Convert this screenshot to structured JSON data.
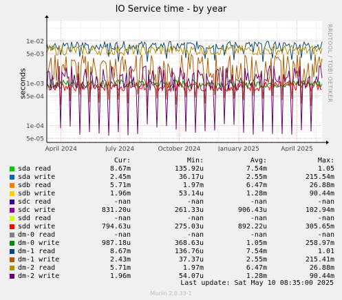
{
  "chart_data": {
    "type": "line",
    "title": "IO Service time - by year",
    "ylabel": "seconds",
    "yscale": "log",
    "ylim": [
      4e-05,
      0.03
    ],
    "yticks": [
      {
        "value": 0.01,
        "label": "1e-02"
      },
      {
        "value": 0.005,
        "label": "5e-03"
      },
      {
        "value": 0.001,
        "label": "1e-03"
      },
      {
        "value": 0.0005,
        "label": "5e-04"
      },
      {
        "value": 0.0001,
        "label": "1e-04"
      },
      {
        "value": 5e-05,
        "label": "5e-05"
      }
    ],
    "xlim": [
      "2024-03-10",
      "2025-05-10"
    ],
    "xticks": [
      {
        "date": "2024-04-01",
        "label": "April 2024"
      },
      {
        "date": "2024-07-01",
        "label": "July 2024"
      },
      {
        "date": "2024-10-01",
        "label": "October 2024"
      },
      {
        "date": "2025-01-01",
        "label": "January 2025"
      },
      {
        "date": "2025-04-01",
        "label": "April 2025"
      }
    ],
    "grid": true,
    "watermark": "RRDTOOL / TOBI OETIKER",
    "columns": [
      "Cur:",
      "Min:",
      "Avg:",
      "Max:"
    ],
    "series": [
      {
        "name": "sda read",
        "color": "#00cc00",
        "cur": "8.67m",
        "min": "135.92u",
        "avg": "7.54m",
        "max": "1.05",
        "plot": false
      },
      {
        "name": "sda write",
        "color": "#0066b3",
        "cur": "2.45m",
        "min": "36.17u",
        "avg": "2.55m",
        "max": "215.54m",
        "plot": false
      },
      {
        "name": "sdb read",
        "color": "#ff8000",
        "cur": "5.71m",
        "min": "1.97m",
        "avg": "6.47m",
        "max": "26.88m",
        "plot": false
      },
      {
        "name": "sdb write",
        "color": "#ffcc00",
        "cur": "1.96m",
        "min": "53.14u",
        "avg": "1.28m",
        "max": "90.44m",
        "plot": false
      },
      {
        "name": "sdc read",
        "color": "#330099",
        "cur": "-nan",
        "min": "-nan",
        "avg": "-nan",
        "max": "-nan",
        "plot": false
      },
      {
        "name": "sdc write",
        "color": "#990099",
        "cur": "831.20u",
        "min": "261.33u",
        "avg": "906.43u",
        "max": "102.94m",
        "plot": false
      },
      {
        "name": "sdd read",
        "color": "#ccff00",
        "cur": "-nan",
        "min": "-nan",
        "avg": "-nan",
        "max": "-nan",
        "plot": false
      },
      {
        "name": "sdd write",
        "color": "#ff0000",
        "cur": "794.63u",
        "min": "275.03u",
        "avg": "892.22u",
        "max": "305.65m",
        "plot": true,
        "base": 0.00085,
        "dips": false,
        "spread": 0.12
      },
      {
        "name": "dm-0 read",
        "color": "#808080",
        "cur": "-nan",
        "min": "-nan",
        "avg": "-nan",
        "max": "-nan",
        "plot": false
      },
      {
        "name": "dm-0 write",
        "color": "#008f00",
        "cur": "987.18u",
        "min": "368.63u",
        "avg": "1.05m",
        "max": "258.97m",
        "plot": true,
        "base": 0.00098,
        "dips": false,
        "spread": 0.1
      },
      {
        "name": "dm-1 read",
        "color": "#00487d",
        "cur": "8.67m",
        "min": "136.76u",
        "avg": "7.54m",
        "max": "1.01",
        "plot": true,
        "base": 0.0078,
        "dips": true,
        "dipTo": 0.0045,
        "spread": 0.1
      },
      {
        "name": "dm-1 write",
        "color": "#b35a00",
        "cur": "2.43m",
        "min": "37.37u",
        "avg": "2.55m",
        "max": "215.41m",
        "plot": true,
        "base": 0.0022,
        "dips": true,
        "dipTo": 0.0004,
        "spread": 0.35
      },
      {
        "name": "dm-2 read",
        "color": "#b38f00",
        "cur": "5.71m",
        "min": "1.97m",
        "avg": "6.47m",
        "max": "26.88m",
        "plot": true,
        "base": 0.006,
        "dips": false,
        "spread": 0.12
      },
      {
        "name": "dm-2 write",
        "color": "#6b006b",
        "cur": "1.96m",
        "min": "54.07u",
        "avg": "1.28m",
        "max": "90.44m",
        "plot": true,
        "base": 0.0013,
        "dips": true,
        "dipTo": 8e-05,
        "spread": 0.3
      }
    ]
  },
  "footer": {
    "last_update": "Last update:  Sat May 10 08:35:00 2025",
    "munin": "Munin 2.0.33-1"
  }
}
